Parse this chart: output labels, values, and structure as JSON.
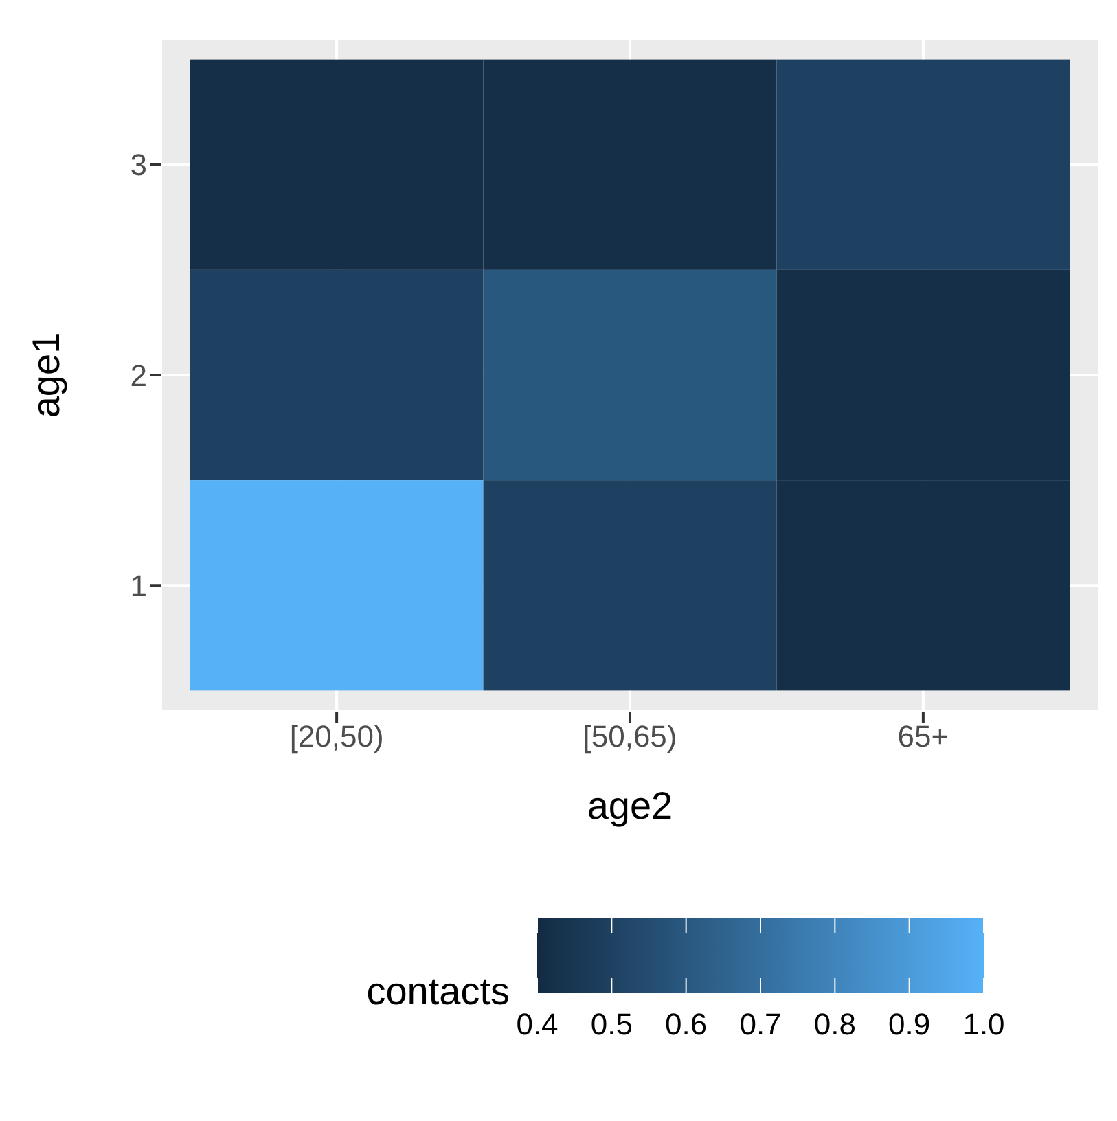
{
  "chart_data": {
    "type": "heatmap",
    "xlabel": "age2",
    "ylabel": "age1",
    "clabel": "contacts",
    "categories": [
      "[20,50)",
      "[50,65)",
      "65+"
    ],
    "y_categories": [
      "3",
      "2",
      "1"
    ],
    "cells": [
      [
        0.42,
        0.42,
        0.5
      ],
      [
        0.5,
        0.6,
        0.42
      ],
      [
        1.0,
        0.5,
        0.42
      ]
    ],
    "clim": [
      0.4,
      1.0
    ],
    "cticks": [
      0.4,
      0.5,
      0.6,
      0.7,
      0.8,
      0.9,
      {
        "value": 1,
        "label": "1.0"
      }
    ],
    "grid": true
  }
}
